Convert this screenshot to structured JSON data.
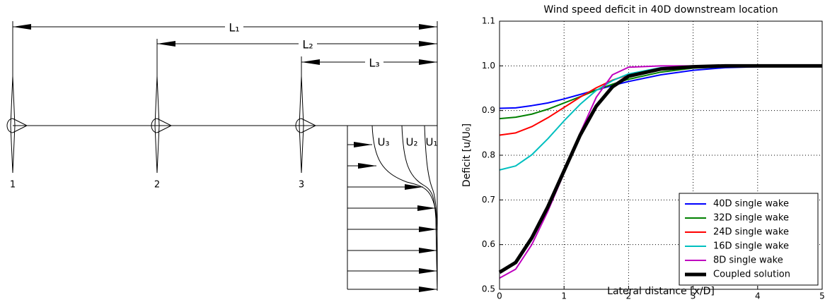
{
  "diagram": {
    "L1": "L₁",
    "L2": "L₂",
    "L3": "L₃",
    "turbines": [
      "1",
      "2",
      "3"
    ],
    "U1": "U₁",
    "U2": "U₂",
    "U3": "U₃"
  },
  "chart_data": {
    "type": "line",
    "title": "Wind speed deficit in 40D downstream location",
    "xlabel": "Lateral distance [x/D]",
    "ylabel": "Deficit [u/U₀]",
    "x": [
      0,
      0.25,
      0.5,
      0.75,
      1,
      1.25,
      1.5,
      1.75,
      2,
      2.5,
      3,
      3.5,
      4,
      5
    ],
    "series": [
      {
        "name": "40D single wake",
        "color": "#0000ff",
        "width": 2,
        "values": [
          0.905,
          0.906,
          0.911,
          0.917,
          0.926,
          0.936,
          0.946,
          0.956,
          0.965,
          0.98,
          0.99,
          0.996,
          0.998,
          1.0
        ]
      },
      {
        "name": "32D single wake",
        "color": "#008000",
        "width": 2,
        "values": [
          0.882,
          0.885,
          0.892,
          0.903,
          0.917,
          0.931,
          0.946,
          0.959,
          0.97,
          0.986,
          0.995,
          0.998,
          1.0,
          1.0
        ]
      },
      {
        "name": "24D single wake",
        "color": "#ff0000",
        "width": 2,
        "values": [
          0.845,
          0.85,
          0.864,
          0.884,
          0.907,
          0.93,
          0.951,
          0.968,
          0.98,
          0.994,
          0.998,
          1.0,
          1.0,
          1.0
        ]
      },
      {
        "name": "16D single wake",
        "color": "#00bfbf",
        "width": 2,
        "values": [
          0.767,
          0.776,
          0.801,
          0.837,
          0.877,
          0.914,
          0.945,
          0.967,
          0.982,
          0.996,
          0.999,
          1.0,
          1.0,
          1.0
        ]
      },
      {
        "name": "8D single wake",
        "color": "#bf00bf",
        "width": 2,
        "values": [
          0.525,
          0.545,
          0.6,
          0.675,
          0.76,
          0.85,
          0.93,
          0.98,
          0.997,
          1.0,
          1.0,
          1.0,
          1.0,
          1.0
        ]
      },
      {
        "name": "Coupled solution",
        "color": "#000000",
        "width": 5,
        "values": [
          0.538,
          0.56,
          0.615,
          0.685,
          0.765,
          0.845,
          0.91,
          0.953,
          0.977,
          0.993,
          0.998,
          1.0,
          1.0,
          1.0
        ]
      }
    ],
    "xlim": [
      0,
      5
    ],
    "xticks": [
      0,
      1,
      2,
      3,
      4,
      5
    ],
    "ylim": [
      0.5,
      1.1
    ],
    "yticks": [
      0.5,
      0.6,
      0.7,
      0.8,
      0.9,
      {
        "value": 1,
        "label": "1.0"
      },
      1.1
    ],
    "grid": true,
    "legend": "lower right"
  }
}
